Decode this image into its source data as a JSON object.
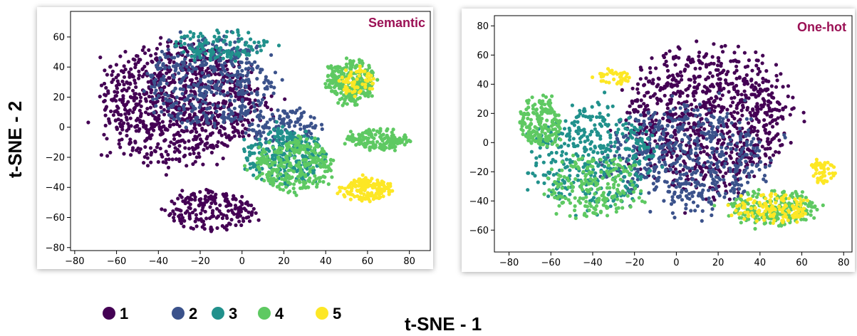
{
  "chart_data": [
    {
      "type": "scatter",
      "title": "Semantic",
      "xlim": [
        -82,
        90
      ],
      "ylim": [
        -82,
        77
      ],
      "xticks": [
        "−80",
        "−60",
        "−40",
        "−20",
        "0",
        "20",
        "40",
        "60",
        "80"
      ],
      "xtick_values": [
        -80,
        -60,
        -40,
        -20,
        0,
        20,
        40,
        60,
        80
      ],
      "yticks": [
        "−80",
        "−60",
        "−40",
        "−20",
        "0",
        "20",
        "40",
        "60"
      ],
      "ytick_values": [
        -80,
        -60,
        -40,
        -20,
        0,
        20,
        40,
        60
      ],
      "grid": false,
      "clusters": [
        {
          "class": "1",
          "cx": -30,
          "cy": 15,
          "rx": 45,
          "ry": 45,
          "n": 950
        },
        {
          "class": "1",
          "cx": -15,
          "cy": -55,
          "rx": 25,
          "ry": 15,
          "n": 200
        },
        {
          "class": "2",
          "cx": -15,
          "cy": 30,
          "rx": 35,
          "ry": 35,
          "n": 450
        },
        {
          "class": "2",
          "cx": 20,
          "cy": 0,
          "rx": 20,
          "ry": 15,
          "n": 120
        },
        {
          "class": "3",
          "cx": 20,
          "cy": -20,
          "rx": 22,
          "ry": 22,
          "n": 260
        },
        {
          "class": "3",
          "cx": -10,
          "cy": 55,
          "rx": 25,
          "ry": 12,
          "n": 120
        },
        {
          "class": "4",
          "cx": 25,
          "cy": -25,
          "rx": 22,
          "ry": 20,
          "n": 280
        },
        {
          "class": "4",
          "cx": 52,
          "cy": 30,
          "rx": 14,
          "ry": 16,
          "n": 240
        },
        {
          "class": "4",
          "cx": 65,
          "cy": -8,
          "rx": 17,
          "ry": 8,
          "n": 160
        },
        {
          "class": "5",
          "cx": 60,
          "cy": -41,
          "rx": 13,
          "ry": 9,
          "n": 160
        },
        {
          "class": "5",
          "cx": 55,
          "cy": 30,
          "rx": 10,
          "ry": 10,
          "n": 60
        }
      ]
    },
    {
      "type": "scatter",
      "title": "One-hot",
      "xlim": [
        -87,
        84
      ],
      "ylim": [
        -75,
        87
      ],
      "xticks": [
        "−80",
        "−60",
        "−40",
        "−20",
        "0",
        "20",
        "40",
        "60",
        "80"
      ],
      "xtick_values": [
        -80,
        -60,
        -40,
        -20,
        0,
        20,
        40,
        60,
        80
      ],
      "yticks": [
        "−60",
        "−40",
        "−20",
        "0",
        "20",
        "40",
        "60",
        "80"
      ],
      "ytick_values": [
        -60,
        -40,
        -20,
        0,
        20,
        40,
        60,
        80
      ],
      "grid": false,
      "clusters": [
        {
          "class": "1",
          "cx": 15,
          "cy": 15,
          "rx": 45,
          "ry": 55,
          "n": 950
        },
        {
          "class": "2",
          "cx": 5,
          "cy": -10,
          "rx": 45,
          "ry": 40,
          "n": 550
        },
        {
          "class": "3",
          "cx": -40,
          "cy": -10,
          "rx": 35,
          "ry": 40,
          "n": 400
        },
        {
          "class": "4",
          "cx": -65,
          "cy": 15,
          "rx": 12,
          "ry": 20,
          "n": 180
        },
        {
          "class": "4",
          "cx": 45,
          "cy": -45,
          "rx": 25,
          "ry": 14,
          "n": 220
        },
        {
          "class": "4",
          "cx": -40,
          "cy": -30,
          "rx": 25,
          "ry": 25,
          "n": 200
        },
        {
          "class": "5",
          "cx": 45,
          "cy": -45,
          "rx": 22,
          "ry": 12,
          "n": 130
        },
        {
          "class": "5",
          "cx": 70,
          "cy": -20,
          "rx": 7,
          "ry": 9,
          "n": 50
        },
        {
          "class": "5",
          "cx": -30,
          "cy": 45,
          "rx": 10,
          "ry": 6,
          "n": 40
        }
      ]
    }
  ],
  "legend": [
    {
      "label": "1",
      "color": "#440154"
    },
    {
      "label": "2",
      "color": "#3b528b"
    },
    {
      "label": "3",
      "color": "#21918c"
    },
    {
      "label": "4",
      "color": "#5ec962"
    },
    {
      "label": "5",
      "color": "#fde725"
    }
  ],
  "xlabel": "t-SNE - 1",
  "ylabel": "t-SNE - 2",
  "title_color": "#9b1155"
}
